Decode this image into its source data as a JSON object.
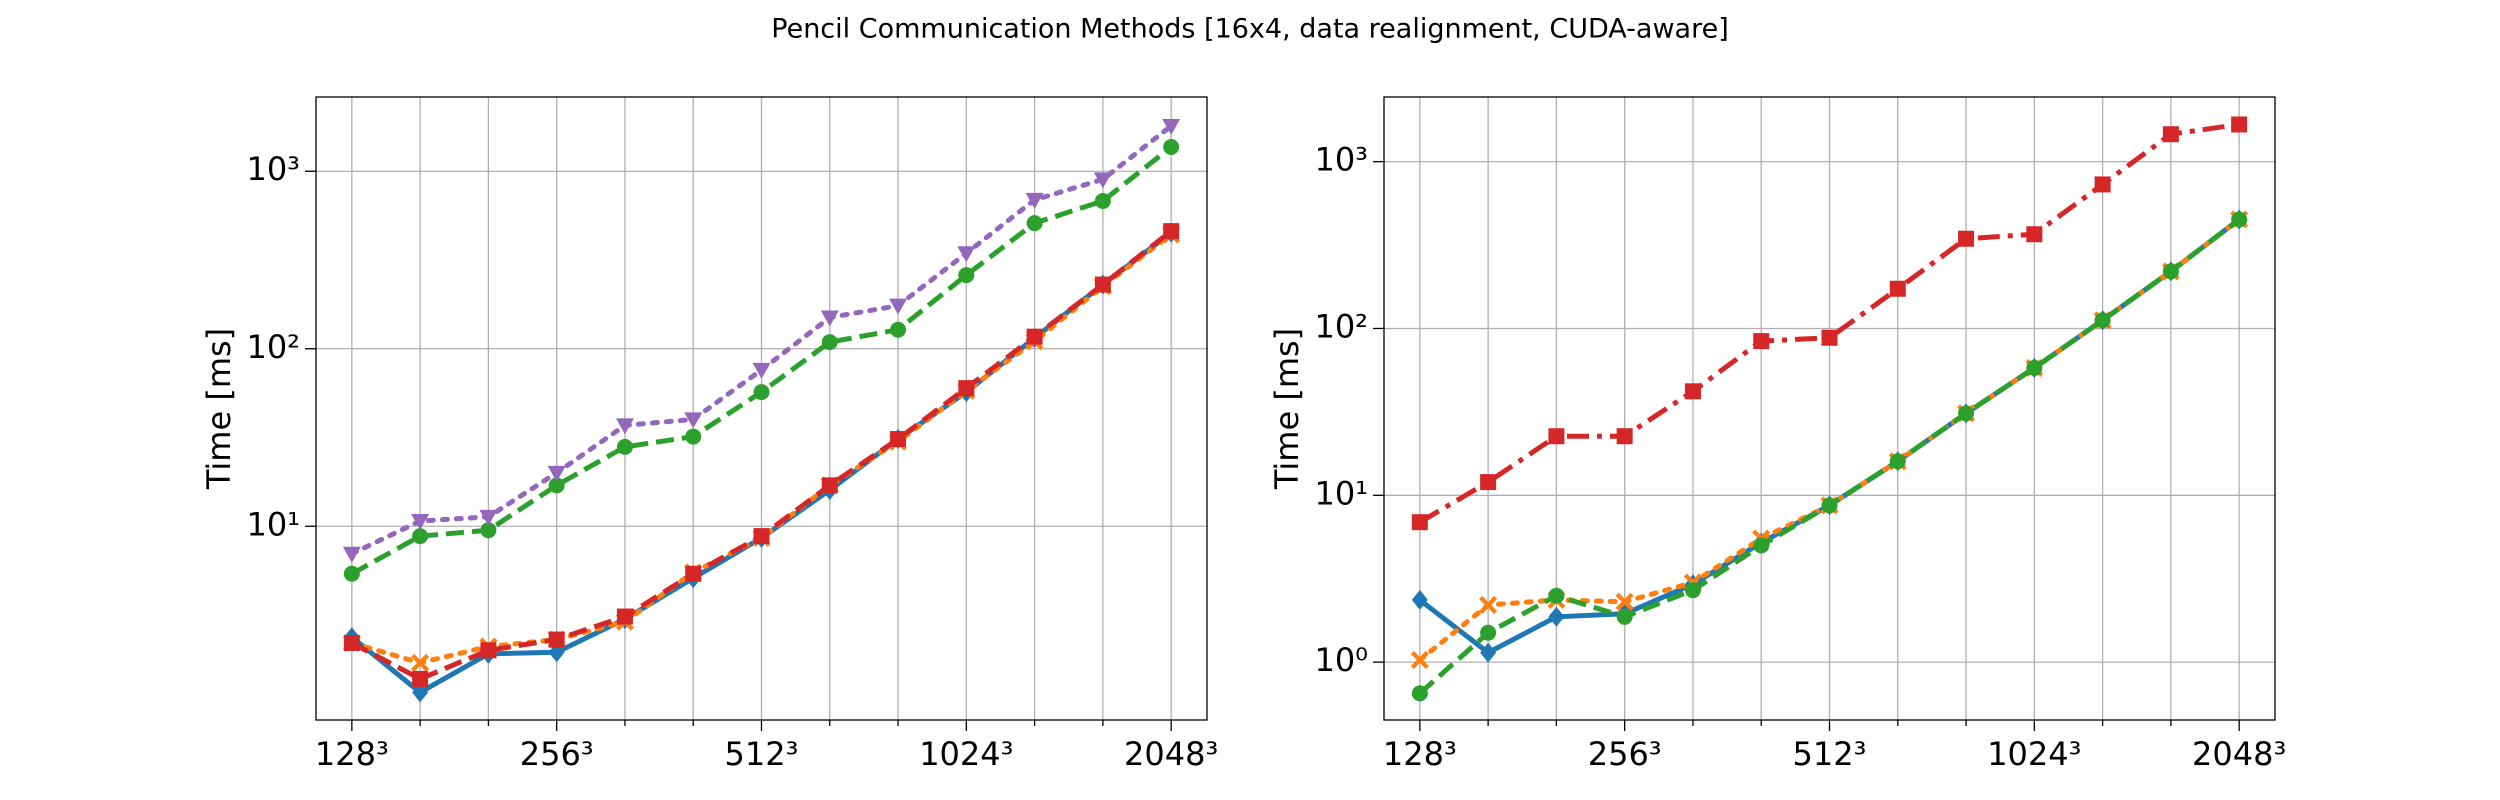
{
  "title": "Pencil Communication Methods [16x4, data realignment, CUDA-aware]",
  "chart_data": [
    {
      "type": "line",
      "ylabel": "Time [ms]",
      "log_y": true,
      "grid": true,
      "categories": [
        "128³",
        null,
        null,
        "256³",
        null,
        null,
        "512³",
        null,
        null,
        "1024³",
        null,
        null,
        "2048³"
      ],
      "ylim": [
        0.81,
        2620
      ],
      "yticks": [
        {
          "value": 10,
          "label": "10¹"
        },
        {
          "value": 100,
          "label": "10²"
        },
        {
          "value": 1000,
          "label": "10³"
        }
      ],
      "series": [
        {
          "color": "#1f77b4",
          "style": "solid",
          "marker": "D",
          "values": [
            2.37,
            1.16,
            1.91,
            1.95,
            3.0,
            5.1,
            8.6,
            16,
            31,
            57,
            115,
            230,
            450
          ]
        },
        {
          "color": "#ff7f0e",
          "style": "dotted",
          "marker": "X",
          "values": [
            2.2,
            1.7,
            2.1,
            2.3,
            2.9,
            5.5,
            8.6,
            17,
            30,
            58,
            110,
            225,
            440
          ]
        },
        {
          "color": "#2ca02c",
          "style": "dashed",
          "marker": "o",
          "values": [
            5.4,
            8.8,
            9.5,
            17,
            28,
            32,
            57,
            109,
            128,
            260,
            510,
            680,
            1370
          ]
        },
        {
          "color": "#d62728",
          "style": "dashed",
          "marker": "s",
          "values": [
            2.2,
            1.38,
            2.0,
            2.3,
            3.1,
            5.4,
            8.8,
            17,
            31,
            60,
            117,
            230,
            460
          ]
        },
        {
          "color": "#9467bd",
          "style": "dotted",
          "marker": "v",
          "values": [
            7.0,
            10.7,
            11.3,
            20,
            37,
            40,
            76,
            150,
            175,
            345,
            690,
            900,
            1800
          ]
        }
      ]
    },
    {
      "type": "line",
      "ylabel": "Time [ms]",
      "log_y": true,
      "grid": true,
      "categories": [
        "128³",
        null,
        null,
        "256³",
        null,
        null,
        "512³",
        null,
        null,
        "1024³",
        null,
        null,
        "2048³"
      ],
      "ylim": [
        0.45,
        2440
      ],
      "yticks": [
        {
          "value": 1,
          "label": "10⁰"
        },
        {
          "value": 10,
          "label": "10¹"
        },
        {
          "value": 100,
          "label": "10²"
        },
        {
          "value": 1000,
          "label": "10³"
        }
      ],
      "series": [
        {
          "color": "#d62728",
          "style": "dashdot",
          "marker": "s",
          "values": [
            6.9,
            12,
            22.6,
            22.6,
            42,
            84,
            88,
            173,
            345,
            367,
            730,
            1460,
            1670
          ]
        },
        {
          "color": "#1f77b4",
          "style": "solid",
          "marker": "D",
          "values": [
            2.36,
            1.14,
            1.87,
            1.95,
            2.93,
            5.2,
            8.7,
            16,
            31,
            58,
            112,
            220,
            450
          ]
        },
        {
          "color": "#ff7f0e",
          "style": "dotted",
          "marker": "X",
          "values": [
            1.03,
            2.2,
            2.36,
            2.3,
            3.0,
            5.5,
            8.7,
            16,
            31,
            58,
            112,
            220,
            450
          ]
        },
        {
          "color": "#2ca02c",
          "style": "dashed",
          "marker": "o",
          "values": [
            0.65,
            1.5,
            2.5,
            1.87,
            2.7,
            5.0,
            8.7,
            16,
            31,
            58,
            112,
            220,
            450
          ]
        }
      ]
    }
  ]
}
